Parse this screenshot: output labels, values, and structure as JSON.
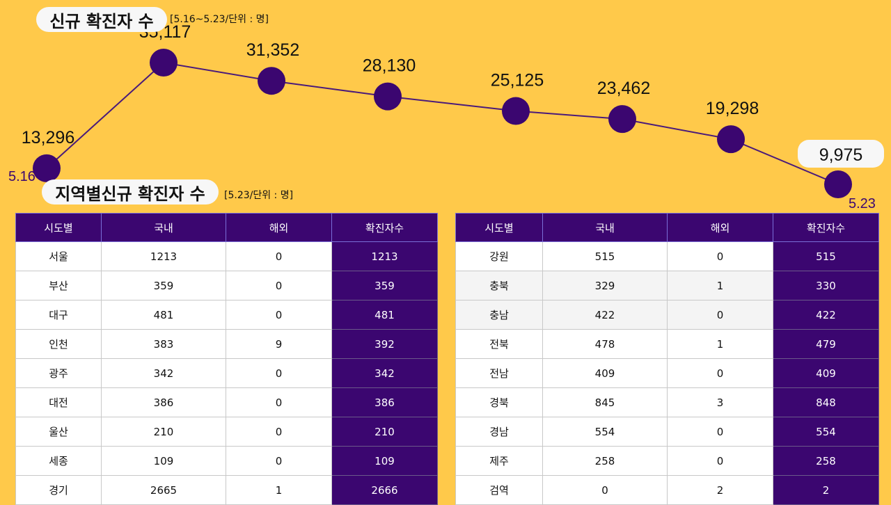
{
  "title1": "신규 확진자 수",
  "subtitle1": "[5.16~5.23/단위 : 명]",
  "title2": "지역별신규 확진자 수",
  "subtitle2": "[5.23/단위 : 명]",
  "colors": {
    "background": "#ffc94a",
    "accent": "#3b0670",
    "line": "#4a1a7a"
  },
  "chart_data": {
    "type": "line",
    "values": [
      13296,
      35117,
      31352,
      28130,
      25125,
      23462,
      19298,
      9975
    ],
    "value_labels": [
      "13,296",
      "35,117",
      "31,352",
      "28,130",
      "25,125",
      "23,462",
      "19,298",
      "9,975"
    ],
    "x_tick_labels": [
      "5.16",
      "5.23"
    ],
    "grid": false,
    "highlight_last": true
  },
  "table_headers": [
    "시도별",
    "국내",
    "해외",
    "확진자수"
  ],
  "left_rows": [
    [
      "서울",
      "1213",
      "0",
      "1213"
    ],
    [
      "부산",
      "359",
      "0",
      "359"
    ],
    [
      "대구",
      "481",
      "0",
      "481"
    ],
    [
      "인천",
      "383",
      "9",
      "392"
    ],
    [
      "광주",
      "342",
      "0",
      "342"
    ],
    [
      "대전",
      "386",
      "0",
      "386"
    ],
    [
      "울산",
      "210",
      "0",
      "210"
    ],
    [
      "세종",
      "109",
      "0",
      "109"
    ],
    [
      "경기",
      "2665",
      "1",
      "2666"
    ]
  ],
  "right_rows": [
    [
      "강원",
      "515",
      "0",
      "515"
    ],
    [
      "충북",
      "329",
      "1",
      "330"
    ],
    [
      "충남",
      "422",
      "0",
      "422"
    ],
    [
      "전북",
      "478",
      "1",
      "479"
    ],
    [
      "전남",
      "409",
      "0",
      "409"
    ],
    [
      "경북",
      "845",
      "3",
      "848"
    ],
    [
      "경남",
      "554",
      "0",
      "554"
    ],
    [
      "제주",
      "258",
      "0",
      "258"
    ],
    [
      "검역",
      "0",
      "2",
      "2"
    ]
  ]
}
